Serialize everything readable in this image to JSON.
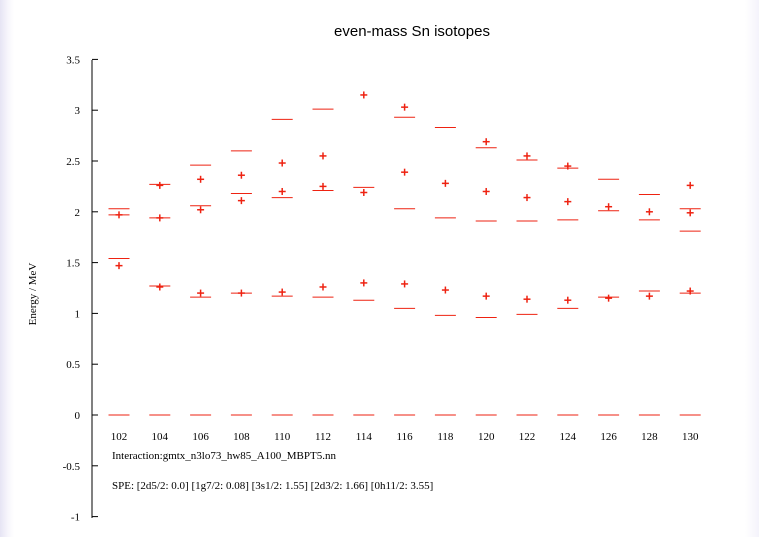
{
  "chart_data": {
    "type": "scatter",
    "title": "even-mass Sn isotopes",
    "xlabel": "",
    "ylabel": "Energy / MeV",
    "x_ticks": [
      102,
      104,
      106,
      108,
      110,
      112,
      114,
      116,
      118,
      120,
      122,
      124,
      126,
      128,
      130
    ],
    "y_ticks": [
      -1,
      -0.5,
      0,
      0.5,
      1,
      1.5,
      2,
      2.5,
      3,
      3.5
    ],
    "ylim": [
      -1,
      3.5
    ],
    "grid": false,
    "color": "#ee2211",
    "annotations": [
      "Interaction:gmtx_n3lo73_hw85_A100_MBPT5.nn",
      "SPE: [2d5/2: 0.0] [1g7/2: 0.08] [3s1/2: 1.55] [2d3/2: 1.66] [0h11/2: 3.55]"
    ],
    "series": [
      {
        "marker": "dash",
        "points": [
          {
            "x": 102,
            "y": [
              0,
              1.54,
              1.97,
              2.03
            ]
          },
          {
            "x": 104,
            "y": [
              0,
              1.27,
              1.94,
              2.27
            ]
          },
          {
            "x": 106,
            "y": [
              0,
              1.16,
              2.06,
              2.46
            ]
          },
          {
            "x": 108,
            "y": [
              0,
              1.2,
              2.18,
              2.6
            ]
          },
          {
            "x": 110,
            "y": [
              0,
              1.17,
              2.14,
              2.91
            ]
          },
          {
            "x": 112,
            "y": [
              0,
              1.16,
              2.21,
              3.01
            ]
          },
          {
            "x": 114,
            "y": [
              0,
              1.13,
              2.24
            ]
          },
          {
            "x": 116,
            "y": [
              0,
              1.05,
              2.03,
              2.93
            ]
          },
          {
            "x": 118,
            "y": [
              0,
              0.98,
              1.94,
              2.83
            ]
          },
          {
            "x": 120,
            "y": [
              0,
              0.96,
              1.91,
              2.63
            ]
          },
          {
            "x": 122,
            "y": [
              0,
              0.99,
              1.91,
              2.51
            ]
          },
          {
            "x": 124,
            "y": [
              0,
              1.05,
              1.92,
              2.43
            ]
          },
          {
            "x": 126,
            "y": [
              0,
              1.16,
              2.01,
              2.32
            ]
          },
          {
            "x": 128,
            "y": [
              0,
              1.22,
              1.92,
              2.17
            ]
          },
          {
            "x": 130,
            "y": [
              0,
              1.2,
              1.81,
              2.03
            ]
          }
        ]
      },
      {
        "marker": "plus",
        "points": [
          {
            "x": 102,
            "y": [
              1.47,
              1.97
            ]
          },
          {
            "x": 104,
            "y": [
              1.26,
              1.94,
              2.26
            ]
          },
          {
            "x": 106,
            "y": [
              1.2,
              2.02,
              2.32
            ]
          },
          {
            "x": 108,
            "y": [
              1.2,
              2.11,
              2.36
            ]
          },
          {
            "x": 110,
            "y": [
              1.21,
              2.2,
              2.48
            ]
          },
          {
            "x": 112,
            "y": [
              1.26,
              2.25,
              2.55
            ]
          },
          {
            "x": 114,
            "y": [
              1.3,
              2.19,
              3.15
            ]
          },
          {
            "x": 116,
            "y": [
              1.29,
              2.39,
              3.03
            ]
          },
          {
            "x": 118,
            "y": [
              1.23,
              2.28
            ]
          },
          {
            "x": 120,
            "y": [
              1.17,
              2.2,
              2.69
            ]
          },
          {
            "x": 122,
            "y": [
              1.14,
              2.14,
              2.55
            ]
          },
          {
            "x": 124,
            "y": [
              1.13,
              2.1,
              2.45
            ]
          },
          {
            "x": 126,
            "y": [
              1.15,
              2.05
            ]
          },
          {
            "x": 128,
            "y": [
              1.17,
              2.0
            ]
          },
          {
            "x": 130,
            "y": [
              1.22,
              1.99,
              2.26
            ]
          }
        ]
      }
    ]
  }
}
